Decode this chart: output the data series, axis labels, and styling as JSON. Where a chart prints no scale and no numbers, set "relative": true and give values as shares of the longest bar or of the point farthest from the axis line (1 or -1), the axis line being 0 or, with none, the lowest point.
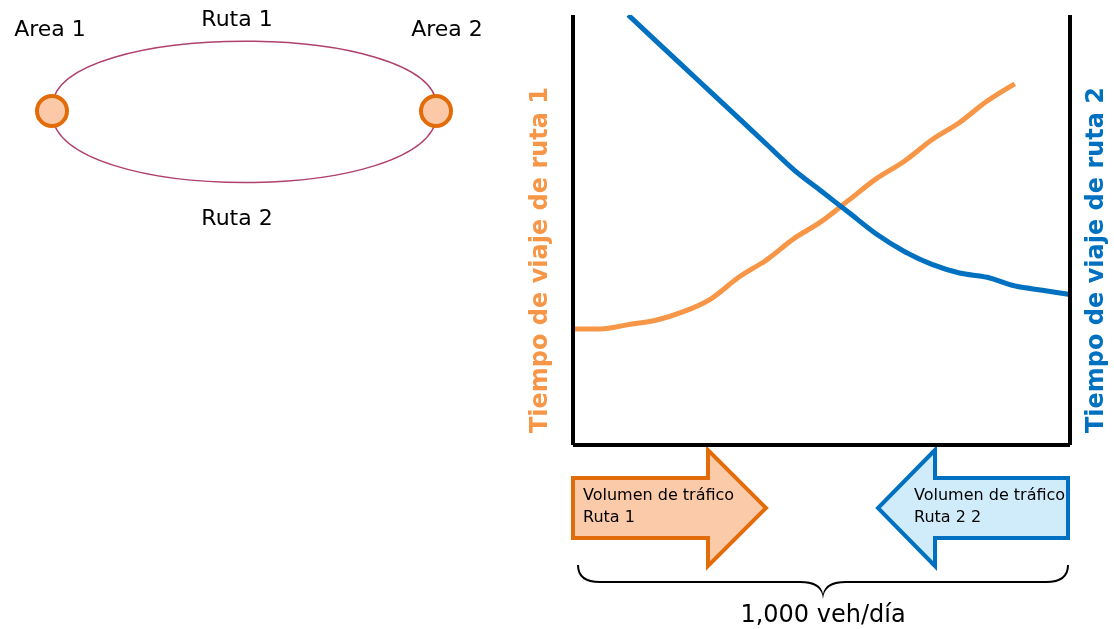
{
  "chart_data": {
    "type": "line",
    "relative": true,
    "categories": [
      null,
      null,
      null,
      null,
      null,
      null,
      null,
      null,
      null,
      null,
      null,
      null,
      null,
      null,
      null,
      null,
      null,
      null,
      null
    ],
    "ylabel": "Tiempo de viaje de ruta 1",
    "y2label": "Tiempo de viaje de ruta 2",
    "series": [
      {
        "color": "#f79646",
        "values": [
          0.27,
          0.27,
          0.28,
          0.29,
          0.31,
          0.34,
          0.39,
          0.43,
          0.48,
          0.52,
          0.57,
          0.62,
          0.66,
          0.71,
          0.75,
          0.8,
          0.84,
          null,
          null
        ]
      },
      {
        "color": "#0070c0",
        "values": [
          null,
          null,
          1.0,
          0.94,
          0.88,
          0.82,
          0.76,
          0.7,
          0.64,
          0.59,
          0.54,
          0.49,
          0.45,
          0.42,
          0.4,
          0.39,
          0.37,
          0.36,
          0.35
        ]
      }
    ],
    "annotations": [
      "Area 1",
      "Ruta 1",
      "Area 2",
      "Ruta 2",
      "Volumen de tráfico Ruta 1",
      "Volumen de tráfico Ruta 2 2",
      "1,000 veh/día"
    ],
    "grid": false,
    "marker": "none",
    "line_style": "solid"
  }
}
